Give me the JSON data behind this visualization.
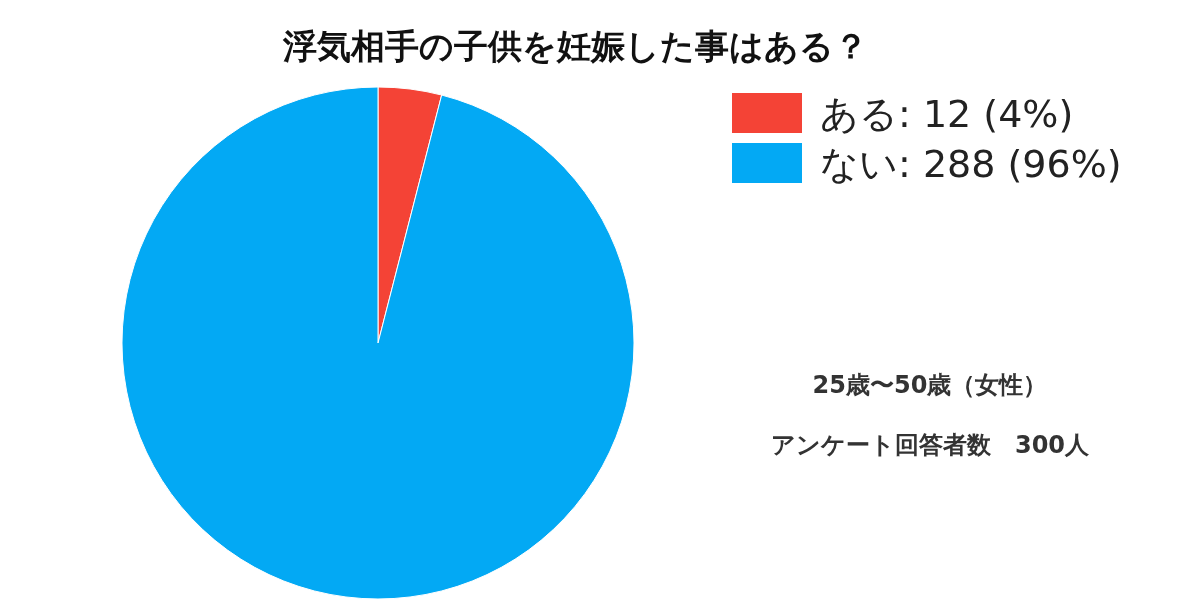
{
  "chart_data": {
    "type": "pie",
    "title": "浮気相手の子供を妊娠した事はある？",
    "categories": [
      "ある",
      "ない"
    ],
    "values": [
      12,
      288
    ],
    "value_labels": [
      "12 (4%)",
      "288 (96%)"
    ],
    "colors": [
      "#f44336",
      "#03a9f4"
    ],
    "legend": "top right",
    "annotations": [
      "25歳〜50歳（女性）",
      "アンケート回答者数　300人"
    ]
  }
}
